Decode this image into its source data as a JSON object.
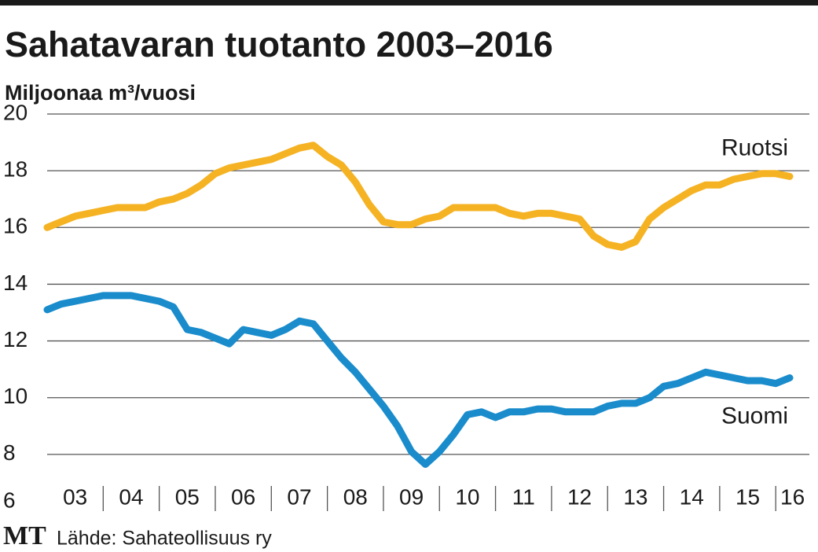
{
  "chart_data": {
    "type": "line",
    "title": "Sahatavaran tuotanto 2003–2016",
    "subtitle": "Miljoonaa m³/vuosi",
    "logo": "MT",
    "source": "Lähde: Sahateollisuus ry",
    "x": [
      2003,
      2003.25,
      2003.5,
      2003.75,
      2004,
      2004.25,
      2004.5,
      2004.75,
      2005,
      2005.25,
      2005.5,
      2005.75,
      2006,
      2006.25,
      2006.5,
      2006.75,
      2007,
      2007.25,
      2007.5,
      2007.75,
      2008,
      2008.25,
      2008.5,
      2008.75,
      2009,
      2009.25,
      2009.5,
      2009.75,
      2010,
      2010.25,
      2010.5,
      2010.75,
      2011,
      2011.25,
      2011.5,
      2011.75,
      2012,
      2012.25,
      2012.5,
      2012.75,
      2013,
      2013.25,
      2013.5,
      2013.75,
      2014,
      2014.25,
      2014.5,
      2014.75,
      2015,
      2015.25,
      2015.5,
      2015.75,
      2016,
      2016.25
    ],
    "series": [
      {
        "name": "Ruotsi",
        "color": "#f5b324",
        "values": [
          16.0,
          16.2,
          16.4,
          16.5,
          16.6,
          16.7,
          16.7,
          16.7,
          16.9,
          17.0,
          17.2,
          17.5,
          17.9,
          18.1,
          18.2,
          18.3,
          18.4,
          18.6,
          18.8,
          18.9,
          18.5,
          18.2,
          17.6,
          16.8,
          16.2,
          16.1,
          16.1,
          16.3,
          16.4,
          16.7,
          16.7,
          16.7,
          16.7,
          16.5,
          16.4,
          16.5,
          16.5,
          16.4,
          16.3,
          15.7,
          15.4,
          15.3,
          15.5,
          16.3,
          16.7,
          17.0,
          17.3,
          17.5,
          17.5,
          17.7,
          17.8,
          17.9,
          17.9,
          17.8
        ]
      },
      {
        "name": "Suomi",
        "color": "#1a8ccc",
        "values": [
          13.1,
          13.3,
          13.4,
          13.5,
          13.6,
          13.6,
          13.6,
          13.5,
          13.4,
          13.2,
          12.4,
          12.3,
          12.1,
          11.9,
          12.4,
          12.3,
          12.2,
          12.4,
          12.7,
          12.6,
          12.0,
          11.4,
          10.9,
          10.3,
          9.7,
          9.0,
          8.1,
          7.65,
          8.1,
          8.7,
          9.4,
          9.5,
          9.3,
          9.5,
          9.5,
          9.6,
          9.6,
          9.5,
          9.5,
          9.5,
          9.7,
          9.8,
          9.8,
          10.0,
          10.4,
          10.5,
          10.7,
          10.9,
          10.8,
          10.7,
          10.6,
          10.6,
          10.5,
          10.7
        ]
      }
    ],
    "xlim": [
      2003,
      2016.6
    ],
    "xticks": [
      {
        "value": 2003.5,
        "label": "03"
      },
      {
        "value": 2004.5,
        "label": "04"
      },
      {
        "value": 2005.5,
        "label": "05"
      },
      {
        "value": 2006.5,
        "label": "06"
      },
      {
        "value": 2007.5,
        "label": "07"
      },
      {
        "value": 2008.5,
        "label": "08"
      },
      {
        "value": 2009.5,
        "label": "09"
      },
      {
        "value": 2010.5,
        "label": "10"
      },
      {
        "value": 2011.5,
        "label": "11"
      },
      {
        "value": 2012.5,
        "label": "12"
      },
      {
        "value": 2013.5,
        "label": "13"
      },
      {
        "value": 2014.5,
        "label": "14"
      },
      {
        "value": 2015.5,
        "label": "15"
      },
      {
        "value": 2016.3,
        "label": "16"
      }
    ],
    "ylim": [
      6,
      20
    ],
    "yticks": [
      6,
      8,
      10,
      12,
      14,
      16,
      18,
      20
    ],
    "grid": true
  }
}
